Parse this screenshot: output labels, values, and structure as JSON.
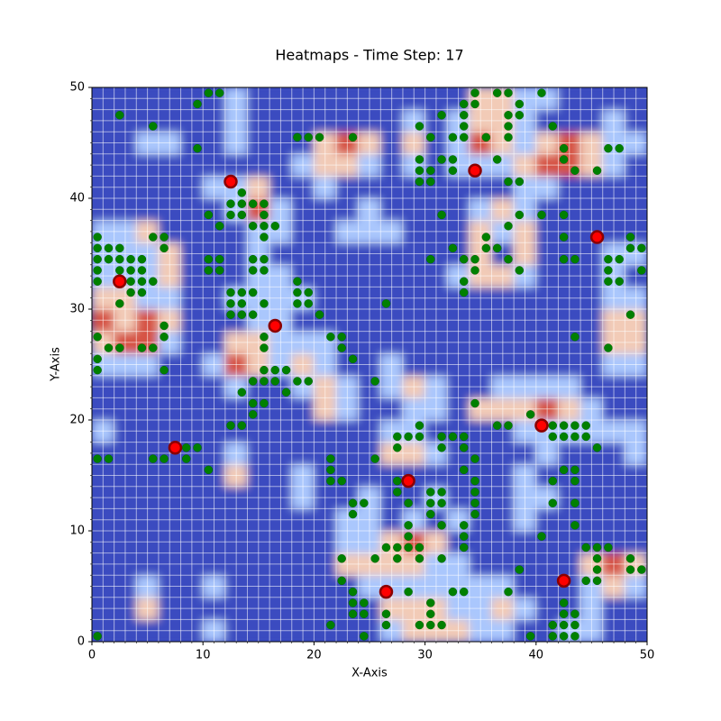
{
  "chart_data": {
    "type": "heatmap",
    "title": "Heatmaps - Time Step: 17",
    "xlabel": "X-Axis",
    "ylabel": "Y-Axis",
    "xlim": [
      0,
      50
    ],
    "ylim": [
      0,
      50
    ],
    "xticks": [
      0,
      10,
      20,
      30,
      40,
      50
    ],
    "yticks": [
      0,
      10,
      20,
      30,
      40,
      50
    ],
    "xminorticks": [
      0,
      1,
      2,
      3,
      4,
      5,
      6,
      7,
      8,
      9,
      10,
      11,
      12,
      13,
      14,
      15,
      16,
      17,
      18,
      19,
      20,
      21,
      22,
      23,
      24,
      25,
      26,
      27,
      28,
      29,
      30,
      31,
      32,
      33,
      34,
      35,
      36,
      37,
      38,
      39,
      40,
      41,
      42,
      43,
      44,
      45,
      46,
      47,
      48,
      49,
      50
    ],
    "yminorticks": [
      0,
      1,
      2,
      3,
      4,
      5,
      6,
      7,
      8,
      9,
      10,
      11,
      12,
      13,
      14,
      15,
      16,
      17,
      18,
      19,
      20,
      21,
      22,
      23,
      24,
      25,
      26,
      27,
      28,
      29,
      30,
      31,
      32,
      33,
      34,
      35,
      36,
      37,
      38,
      39,
      40,
      41,
      42,
      43,
      44,
      45,
      46,
      47,
      48,
      49,
      50
    ],
    "grid": true,
    "zlim": [
      0,
      3
    ],
    "colorscale": [
      "#3b4cc0",
      "#aac7fd",
      "#f2cbb7",
      "#d65244"
    ],
    "z": [
      [
        0,
        0,
        0,
        0,
        0,
        1,
        0,
        0,
        0,
        0,
        0,
        0,
        0,
        1,
        2,
        2,
        2,
        1,
        1,
        0,
        0,
        1,
        1,
        0,
        0
      ],
      [
        0,
        0,
        2,
        0,
        0,
        0,
        0,
        0,
        0,
        0,
        0,
        0,
        0,
        2,
        2,
        2,
        1,
        1,
        2,
        1,
        0,
        0,
        1,
        0,
        0
      ],
      [
        0,
        0,
        1,
        0,
        0,
        1,
        0,
        0,
        0,
        0,
        0,
        0,
        1,
        1,
        1,
        1,
        1,
        1,
        1,
        0,
        0,
        0,
        1,
        2,
        1
      ],
      [
        0,
        0,
        0,
        0,
        0,
        0,
        0,
        0,
        0,
        0,
        0,
        2,
        2,
        2,
        2,
        1,
        1,
        0,
        0,
        0,
        0,
        0,
        2,
        3,
        2
      ],
      [
        0,
        0,
        0,
        0,
        0,
        0,
        0,
        0,
        0,
        0,
        0,
        1,
        1,
        2,
        3,
        2,
        0,
        0,
        0,
        0,
        0,
        0,
        0,
        0,
        0
      ],
      [
        0,
        0,
        0,
        0,
        0,
        0,
        0,
        0,
        0,
        0,
        0,
        1,
        1,
        0,
        1,
        0,
        1,
        0,
        0,
        1,
        0,
        0,
        0,
        0,
        0
      ],
      [
        0,
        0,
        0,
        0,
        0,
        0,
        0,
        0,
        0,
        1,
        0,
        0,
        1,
        0,
        0,
        1,
        0,
        0,
        0,
        1,
        1,
        0,
        0,
        0,
        0
      ],
      [
        0,
        0,
        0,
        0,
        0,
        0,
        2,
        0,
        0,
        1,
        0,
        0,
        0,
        0,
        0,
        0,
        0,
        0,
        0,
        1,
        0,
        0,
        0,
        0,
        0
      ],
      [
        0,
        0,
        0,
        0,
        0,
        0,
        1,
        0,
        0,
        0,
        0,
        0,
        0,
        2,
        2,
        1,
        0,
        0,
        0,
        0,
        1,
        0,
        0,
        0,
        1
      ],
      [
        1,
        0,
        0,
        0,
        0,
        0,
        0,
        0,
        0,
        0,
        0,
        0,
        0,
        1,
        1,
        0,
        0,
        0,
        0,
        1,
        1,
        1,
        1,
        1,
        1
      ],
      [
        0,
        0,
        0,
        0,
        0,
        0,
        0,
        0,
        0,
        0,
        2,
        1,
        0,
        0,
        1,
        1,
        0,
        2,
        2,
        2,
        3,
        2,
        1,
        0,
        0
      ],
      [
        0,
        0,
        0,
        0,
        0,
        0,
        1,
        0,
        0,
        1,
        2,
        1,
        0,
        1,
        2,
        1,
        0,
        0,
        1,
        1,
        1,
        1,
        0,
        0,
        0
      ],
      [
        1,
        1,
        1,
        0,
        0,
        1,
        3,
        2,
        1,
        2,
        1,
        0,
        0,
        1,
        0,
        0,
        0,
        0,
        0,
        0,
        0,
        0,
        0,
        1,
        1
      ],
      [
        2,
        3,
        3,
        1,
        0,
        0,
        2,
        2,
        1,
        1,
        1,
        0,
        0,
        0,
        0,
        0,
        0,
        0,
        0,
        0,
        0,
        0,
        0,
        2,
        2
      ],
      [
        3,
        2,
        3,
        2,
        0,
        0,
        0,
        1,
        1,
        0,
        0,
        0,
        0,
        0,
        0,
        0,
        0,
        0,
        0,
        0,
        0,
        0,
        0,
        2,
        2
      ],
      [
        2,
        2,
        1,
        1,
        0,
        0,
        1,
        1,
        1,
        1,
        0,
        0,
        0,
        0,
        0,
        0,
        0,
        0,
        0,
        0,
        0,
        0,
        0,
        1,
        1
      ],
      [
        1,
        1,
        1,
        2,
        0,
        0,
        0,
        1,
        1,
        0,
        0,
        0,
        0,
        0,
        0,
        0,
        1,
        2,
        2,
        1,
        0,
        0,
        0,
        1,
        0
      ],
      [
        1,
        1,
        1,
        2,
        0,
        0,
        0,
        1,
        0,
        0,
        0,
        0,
        0,
        0,
        0,
        0,
        0,
        2,
        0,
        2,
        0,
        0,
        0,
        1,
        1
      ],
      [
        1,
        1,
        2,
        0,
        0,
        0,
        0,
        1,
        1,
        0,
        0,
        1,
        1,
        1,
        0,
        0,
        0,
        2,
        1,
        2,
        0,
        0,
        0,
        0,
        0
      ],
      [
        0,
        0,
        0,
        0,
        0,
        0,
        1,
        3,
        1,
        0,
        0,
        0,
        1,
        0,
        0,
        0,
        0,
        1,
        2,
        1,
        0,
        0,
        0,
        0,
        0
      ],
      [
        0,
        0,
        0,
        0,
        0,
        1,
        1,
        2,
        0,
        0,
        1,
        0,
        0,
        0,
        0,
        0,
        0,
        0,
        0,
        1,
        1,
        0,
        0,
        0,
        0
      ],
      [
        0,
        0,
        0,
        0,
        0,
        0,
        0,
        0,
        0,
        1,
        2,
        2,
        1,
        0,
        1,
        0,
        1,
        1,
        1,
        2,
        3,
        3,
        2,
        1,
        0
      ],
      [
        0,
        0,
        1,
        1,
        0,
        0,
        1,
        0,
        0,
        0,
        2,
        3,
        2,
        0,
        2,
        0,
        1,
        3,
        2,
        1,
        2,
        3,
        2,
        1,
        1
      ],
      [
        0,
        0,
        0,
        0,
        0,
        0,
        1,
        0,
        0,
        0,
        0,
        0,
        0,
        0,
        1,
        0,
        1,
        2,
        2,
        1,
        0,
        0,
        0,
        1,
        0
      ],
      [
        0,
        0,
        0,
        0,
        0,
        0,
        1,
        0,
        0,
        0,
        0,
        0,
        0,
        0,
        0,
        0,
        0,
        2,
        2,
        1,
        1,
        0,
        0,
        0,
        0
      ]
    ],
    "series": [
      {
        "type": "scatter",
        "color": "#008000",
        "edgecolor": "#006400",
        "x": [
          11.5,
          10.5,
          9.5,
          2.5,
          5.5,
          9.5,
          18.5,
          19.5,
          20.5,
          23.5,
          29.5,
          30.5,
          31.5,
          33.5,
          33.5,
          34.5,
          34.5,
          36.5,
          37.5,
          40.5,
          37.5,
          38.5,
          38.5,
          37.5,
          35.5,
          37.5,
          33.5,
          33.5,
          32.5,
          41.5,
          42.5,
          42.5,
          43.5,
          45.5,
          46.5,
          47.5,
          29.5,
          29.5,
          29.5,
          30.5,
          30.5,
          31.5,
          32.5,
          32.5,
          37.5,
          38.5,
          36.5,
          12.5,
          13.5,
          14.5,
          15.5,
          13.5,
          12.5,
          13.5,
          15.5,
          10.5,
          11.5,
          14.5,
          15.5,
          16.5,
          15.5,
          31.5,
          37.5,
          38.5,
          40.5,
          42.5,
          42.5,
          36.5,
          35.5,
          35.5,
          32.5,
          30.5,
          33.5,
          34.5,
          37.5,
          38.5,
          42.5,
          43.5,
          34.5,
          33.5,
          33.5,
          46.5,
          47.5,
          48.5,
          48.5,
          49.5,
          46.5,
          49.5,
          46.5,
          47.5,
          48.5,
          46.5,
          43.5,
          0.5,
          0.5,
          1.5,
          2.5,
          5.5,
          6.5,
          6.5,
          0.5,
          1.5,
          2.5,
          3.5,
          4.5,
          0.5,
          2.5,
          3.5,
          4.5,
          0.5,
          3.5,
          4.5,
          5.5,
          3.5,
          4.5,
          2.5,
          6.5,
          6.5,
          0.5,
          1.5,
          2.5,
          4.5,
          5.5,
          0.5,
          0.5,
          6.5,
          10.5,
          11.5,
          10.5,
          11.5,
          14.5,
          15.5,
          14.5,
          15.5,
          12.5,
          13.5,
          14.5,
          12.5,
          13.5,
          15.5,
          18.5,
          18.5,
          19.5,
          18.5,
          19.5,
          20.5,
          12.5,
          13.5,
          14.5,
          15.5,
          15.5,
          21.5,
          22.5,
          22.5,
          23.5,
          15.5,
          16.5,
          17.5,
          14.5,
          15.5,
          16.5,
          18.5,
          19.5,
          17.5,
          13.5,
          14.5,
          15.5,
          14.5,
          12.5,
          13.5,
          25.5,
          26.5,
          34.5,
          39.5,
          36.5,
          37.5,
          41.5,
          42.5,
          43.5,
          44.5,
          41.5,
          42.5,
          43.5,
          44.5,
          45.5,
          29.5,
          27.5,
          28.5,
          29.5,
          31.5,
          32.5,
          33.5,
          27.5,
          31.5,
          33.5,
          34.5,
          33.5,
          42.5,
          43.5,
          41.5,
          43.5,
          41.5,
          43.5,
          43.5,
          40.5,
          8.5,
          9.5,
          0.5,
          1.5,
          5.5,
          6.5,
          8.5,
          10.5,
          21.5,
          21.5,
          21.5,
          22.5,
          25.5,
          27.5,
          27.5,
          28.5,
          30.5,
          31.5,
          30.5,
          31.5,
          30.5,
          31.5,
          34.5,
          34.5,
          34.5,
          34.5,
          33.5,
          33.5,
          33.5,
          23.5,
          24.5,
          23.5,
          28.5,
          28.5,
          27.5,
          28.5,
          29.5,
          26.5,
          27.5,
          29.5,
          31.5,
          22.5,
          22.5,
          23.5,
          23.5,
          24.5,
          23.5,
          24.5,
          26.5,
          21.5,
          24.5,
          26.5,
          25.5,
          28.5,
          30.5,
          30.5,
          29.5,
          30.5,
          31.5,
          32.5,
          33.5,
          37.5,
          38.5,
          39.5,
          41.5,
          41.5,
          42.5,
          42.5,
          42.5,
          43.5,
          43.5,
          43.5,
          42.5,
          44.5,
          45.5,
          45.5,
          45.5,
          44.5,
          45.5,
          46.5,
          48.5,
          48.5,
          49.5,
          0.5
        ],
        "values": [
          49.5,
          49.5,
          48.5,
          47.5,
          46.5,
          44.5,
          45.5,
          45.5,
          45.5,
          45.5,
          46.5,
          45.5,
          47.5,
          47.5,
          48.5,
          49.5,
          48.5,
          49.5,
          49.5,
          49.5,
          47.5,
          48.5,
          47.5,
          46.5,
          45.5,
          45.5,
          46.5,
          45.5,
          45.5,
          46.5,
          44.5,
          43.5,
          42.5,
          42.5,
          44.5,
          44.5,
          43.5,
          42.5,
          41.5,
          42.5,
          41.5,
          43.5,
          43.5,
          42.5,
          41.5,
          41.5,
          43.5,
          39.5,
          39.5,
          39.5,
          39.5,
          40.5,
          38.5,
          38.5,
          38.5,
          38.5,
          37.5,
          37.5,
          37.5,
          37.5,
          36.5,
          38.5,
          37.5,
          38.5,
          38.5,
          38.5,
          36.5,
          35.5,
          35.5,
          36.5,
          35.5,
          34.5,
          34.5,
          34.5,
          34.5,
          33.5,
          34.5,
          34.5,
          33.5,
          32.5,
          31.5,
          34.5,
          34.5,
          36.5,
          35.5,
          35.5,
          33.5,
          33.5,
          32.5,
          32.5,
          29.5,
          26.5,
          27.5,
          36.5,
          35.5,
          35.5,
          35.5,
          36.5,
          36.5,
          35.5,
          34.5,
          34.5,
          34.5,
          34.5,
          34.5,
          33.5,
          33.5,
          33.5,
          33.5,
          32.5,
          32.5,
          32.5,
          32.5,
          31.5,
          31.5,
          30.5,
          28.5,
          27.5,
          27.5,
          26.5,
          26.5,
          26.5,
          26.5,
          25.5,
          24.5,
          24.5,
          34.5,
          34.5,
          33.5,
          33.5,
          34.5,
          34.5,
          33.5,
          33.5,
          31.5,
          31.5,
          31.5,
          30.5,
          30.5,
          30.5,
          32.5,
          31.5,
          31.5,
          30.5,
          30.5,
          29.5,
          29.5,
          29.5,
          29.5,
          27.5,
          26.5,
          27.5,
          27.5,
          26.5,
          25.5,
          24.5,
          24.5,
          24.5,
          23.5,
          23.5,
          23.5,
          23.5,
          23.5,
          22.5,
          22.5,
          21.5,
          21.5,
          20.5,
          19.5,
          19.5,
          23.5,
          30.5,
          21.5,
          20.5,
          19.5,
          19.5,
          19.5,
          19.5,
          19.5,
          19.5,
          18.5,
          18.5,
          18.5,
          18.5,
          17.5,
          19.5,
          18.5,
          18.5,
          18.5,
          18.5,
          18.5,
          18.5,
          17.5,
          17.5,
          17.5,
          16.5,
          15.5,
          15.5,
          15.5,
          14.5,
          14.5,
          12.5,
          12.5,
          10.5,
          9.5,
          17.5,
          17.5,
          16.5,
          16.5,
          16.5,
          16.5,
          16.5,
          15.5,
          16.5,
          15.5,
          14.5,
          14.5,
          16.5,
          14.5,
          13.5,
          12.5,
          13.5,
          13.5,
          12.5,
          12.5,
          11.5,
          10.5,
          14.5,
          13.5,
          12.5,
          11.5,
          10.5,
          9.5,
          8.5,
          12.5,
          12.5,
          11.5,
          10.5,
          9.5,
          8.5,
          8.5,
          8.5,
          8.5,
          7.5,
          7.5,
          7.5,
          7.5,
          5.5,
          4.5,
          3.5,
          3.5,
          2.5,
          2.5,
          2.5,
          1.5,
          0.5,
          1.5,
          7.5,
          4.5,
          3.5,
          2.5,
          1.5,
          1.5,
          1.5,
          4.5,
          4.5,
          4.5,
          6.5,
          0.5,
          1.5,
          0.5,
          2.5,
          1.5,
          0.5,
          2.5,
          1.5,
          0.5,
          3.5,
          5.5,
          5.5,
          6.5,
          7.5,
          8.5,
          8.5,
          8.5,
          7.5,
          6.5,
          6.5,
          0.5
        ]
      },
      {
        "type": "scatter",
        "color": "#ff0000",
        "edgecolor": "#8b0000",
        "x": [
          12.5,
          34.5,
          45.5,
          2.5,
          16.5,
          7.5,
          40.5,
          28.5,
          26.5,
          42.5
        ],
        "values": [
          41.5,
          42.5,
          36.5,
          32.5,
          28.5,
          17.5,
          19.5,
          14.5,
          4.5,
          5.5
        ]
      }
    ]
  }
}
